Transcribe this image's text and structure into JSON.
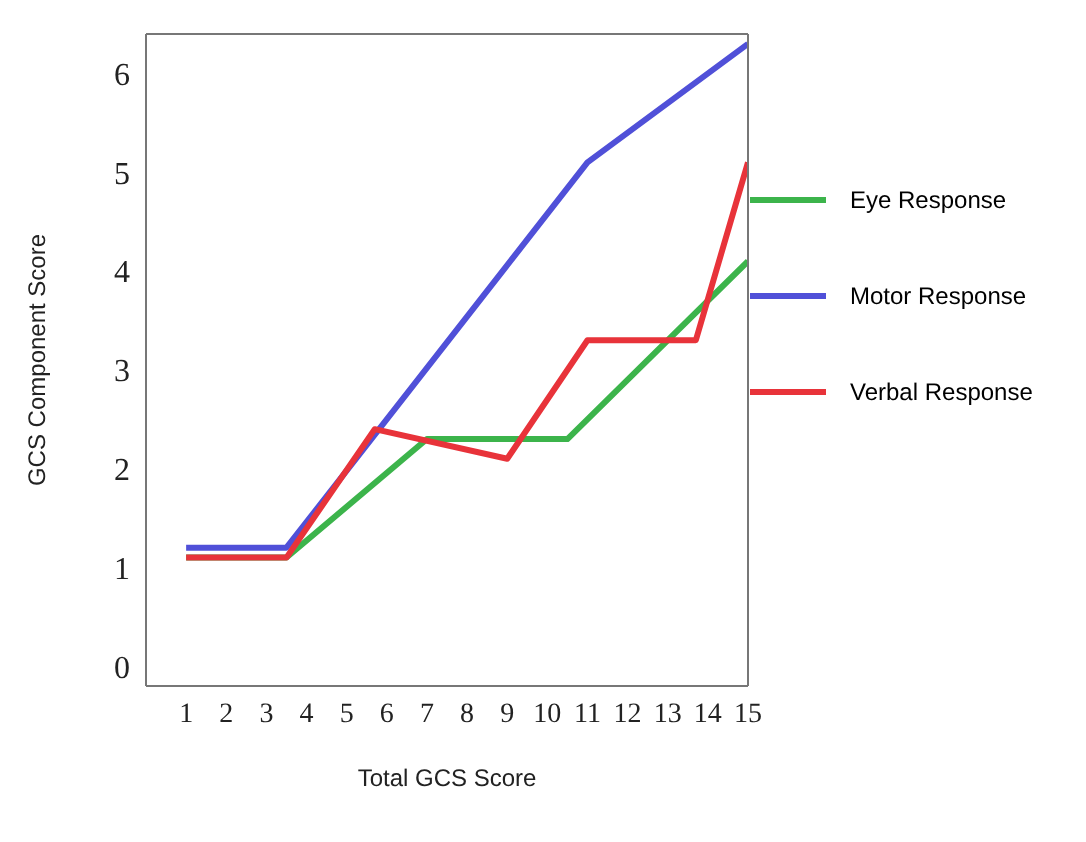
{
  "chart_data": {
    "type": "line",
    "xlabel": "Total GCS Score",
    "ylabel": "GCS Component Score",
    "xlim": [
      0,
      15
    ],
    "ylim": [
      -0.2,
      6.4
    ],
    "xticks": [
      1,
      2,
      3,
      4,
      5,
      6,
      7,
      8,
      9,
      10,
      11,
      12,
      13,
      14,
      15
    ],
    "yticks": [
      0,
      1,
      2,
      3,
      4,
      5,
      6
    ],
    "grid": false,
    "legend": "right",
    "marker": "none",
    "line_style": "solid",
    "series": [
      {
        "name": "Eye Response",
        "color": "#3cb44b",
        "x": [
          1,
          3.5,
          7,
          10.5,
          15
        ],
        "values": [
          1.1,
          1.1,
          2.3,
          2.3,
          4.1
        ]
      },
      {
        "name": "Motor Response",
        "color": "#5050d8",
        "x": [
          1,
          3.5,
          11,
          15
        ],
        "values": [
          1.2,
          1.2,
          5.1,
          6.3
        ]
      },
      {
        "name": "Verbal Response",
        "color": "#e8333a",
        "x": [
          1,
          3.5,
          5.7,
          9,
          11,
          13.7,
          15
        ],
        "values": [
          1.1,
          1.1,
          2.4,
          2.1,
          3.3,
          3.3,
          5.1
        ]
      }
    ]
  }
}
